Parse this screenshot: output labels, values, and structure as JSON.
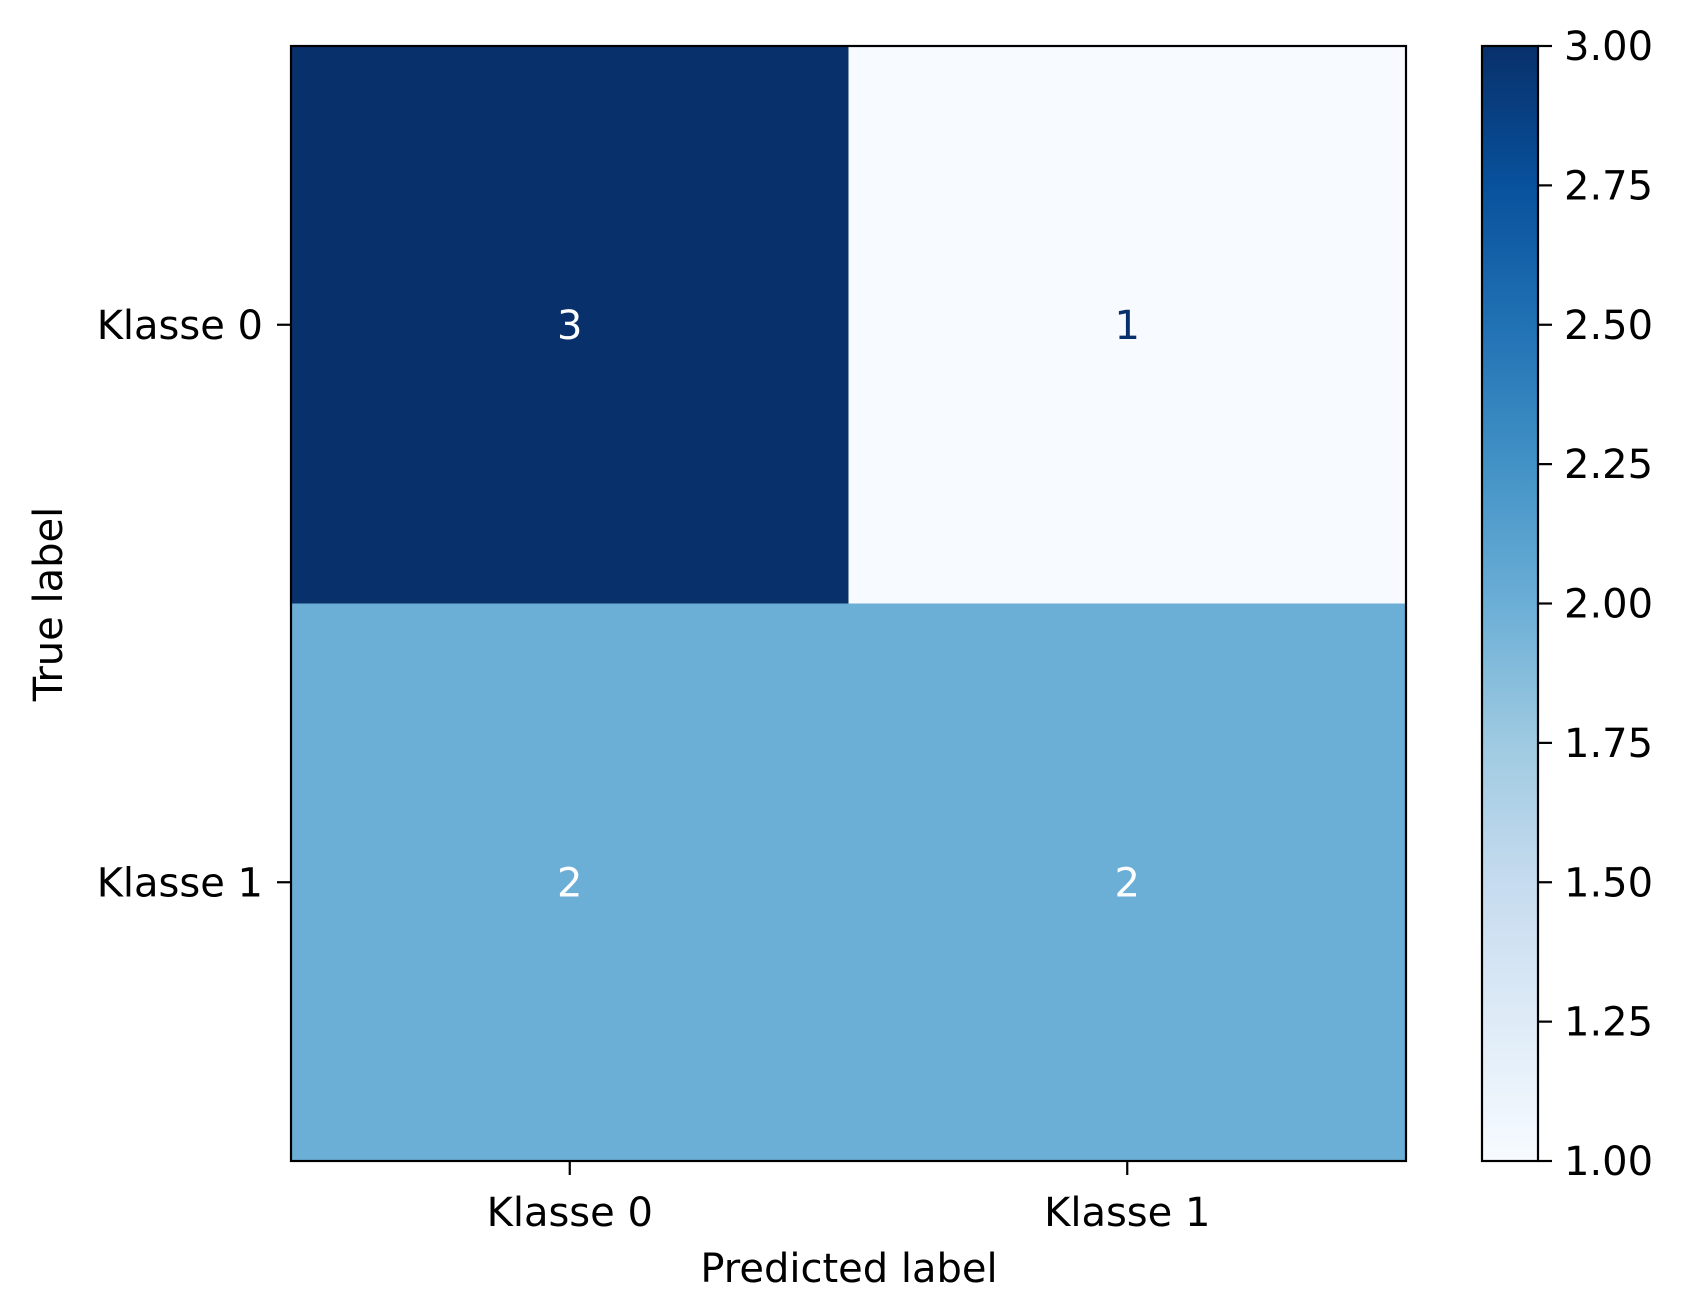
{
  "chart_data": {
    "type": "heatmap",
    "title": "",
    "xlabel": "Predicted label",
    "ylabel": "True label",
    "x_categories": [
      "Klasse 0",
      "Klasse 1"
    ],
    "y_categories": [
      "Klasse 0",
      "Klasse 1"
    ],
    "matrix": [
      [
        3,
        1
      ],
      [
        2,
        2
      ]
    ],
    "colormap": "Blues",
    "colorbar": {
      "range": [
        1.0,
        3.0
      ],
      "ticks": [
        "1.00",
        "1.25",
        "1.50",
        "1.75",
        "2.00",
        "2.25",
        "2.50",
        "2.75",
        "3.00"
      ]
    },
    "colors": {
      "max": "#08306b",
      "mid": "#6badd6",
      "min": "#f7fbff",
      "text_on_dark": "#ffffff",
      "text_on_light": "#08306b"
    }
  }
}
